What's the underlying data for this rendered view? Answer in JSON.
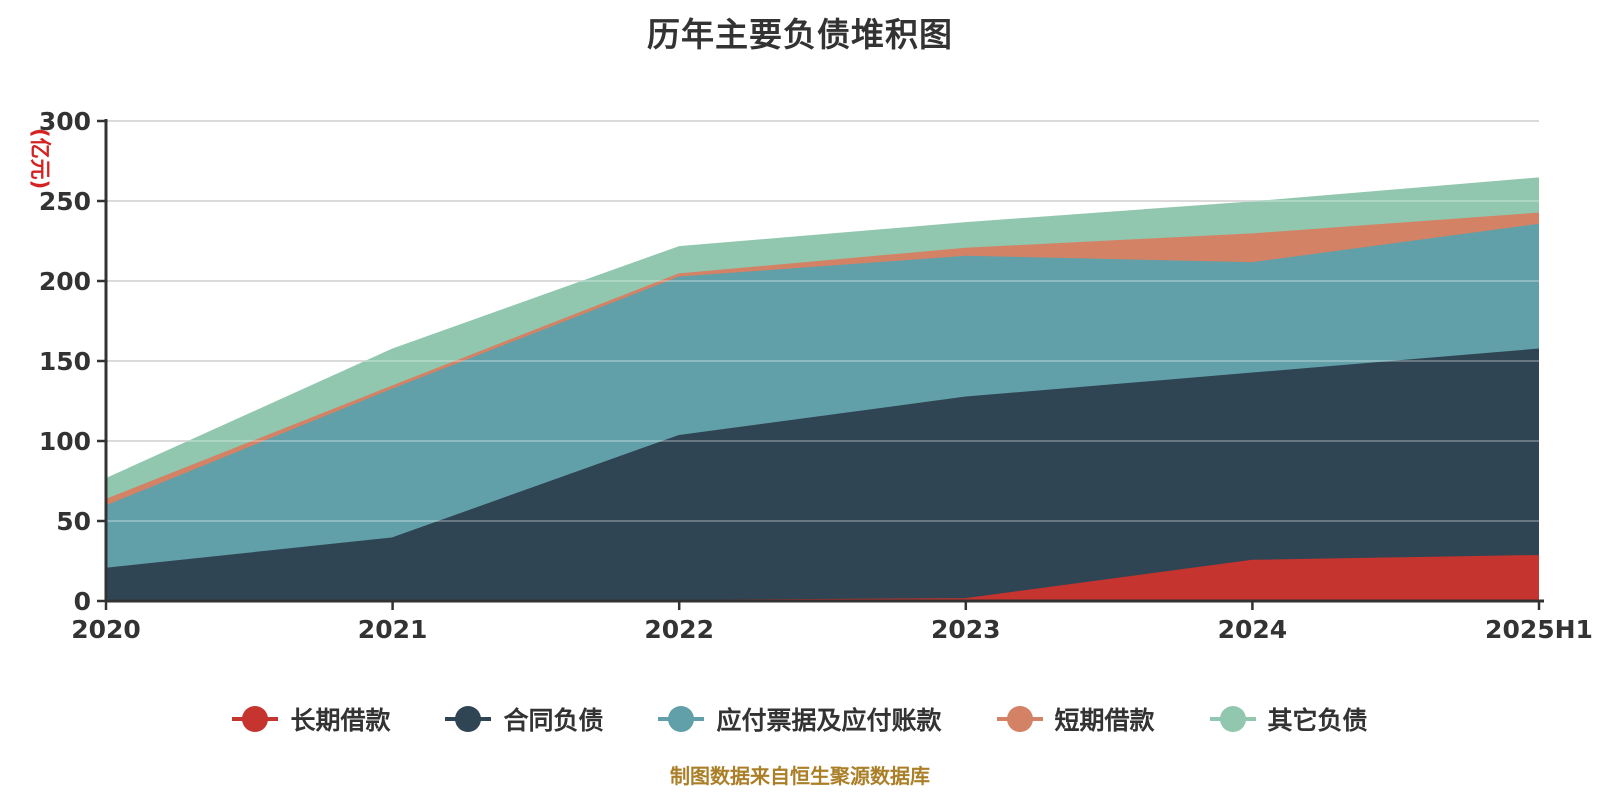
{
  "title": "历年主要负债堆积图",
  "footer": {
    "text": "制图数据来自恒生聚源数据库",
    "color": "#ab7f28"
  },
  "y_axis": {
    "name": "(亿元)",
    "name_color": "#d32222",
    "min": 0,
    "max": 300,
    "interval": 50,
    "tick_labels": [
      "0",
      "50",
      "100",
      "150",
      "200",
      "250",
      "300"
    ],
    "label_color": "#333333"
  },
  "x_axis": {
    "categories": [
      "2020",
      "2021",
      "2022",
      "2023",
      "2024",
      "2025H1"
    ],
    "label_color": "#333333"
  },
  "legend": [
    {
      "label": "长期借款",
      "color": "#c5342f"
    },
    {
      "label": "合同负债",
      "color": "#2f4554"
    },
    {
      "label": "应付票据及应付账款",
      "color": "#61a0a8"
    },
    {
      "label": "短期借款",
      "color": "#d48265"
    },
    {
      "label": "其它负债",
      "color": "#91c7ae"
    }
  ],
  "chart_data": {
    "type": "area",
    "stacked": true,
    "title": "历年主要负债堆积图",
    "ylabel": "(亿元)",
    "ylim": [
      0,
      300
    ],
    "grid": true,
    "legend_position": "bottom",
    "categories": [
      "2020",
      "2021",
      "2022",
      "2023",
      "2024",
      "2025H1"
    ],
    "series": [
      {
        "name": "长期借款",
        "color": "#c5342f",
        "values": [
          0,
          0,
          0,
          1,
          25,
          28
        ]
      },
      {
        "name": "合同负债",
        "color": "#2f4554",
        "values": [
          20,
          39,
          103,
          126,
          117,
          129
        ]
      },
      {
        "name": "应付票据及应付账款",
        "color": "#61a0a8",
        "values": [
          39,
          93,
          99,
          88,
          69,
          78
        ]
      },
      {
        "name": "短期借款",
        "color": "#d48265",
        "values": [
          4,
          2,
          2,
          5,
          18,
          7
        ]
      },
      {
        "name": "其它负债",
        "color": "#91c7ae",
        "values": [
          13,
          23,
          17,
          16,
          20,
          22
        ]
      }
    ],
    "cumulative_tops": {
      "2020": [
        0,
        20,
        59,
        63,
        76
      ],
      "2021": [
        0,
        39,
        132,
        134,
        157
      ],
      "2022": [
        0,
        103,
        202,
        204,
        221
      ],
      "2023": [
        1,
        127,
        215,
        220,
        236
      ],
      "2024": [
        25,
        142,
        211,
        229,
        249
      ],
      "2025H1": [
        28,
        157,
        235,
        242,
        264
      ]
    }
  },
  "style": {
    "axis_color": "#333333",
    "grid_color": "#cccccc",
    "background": "#ffffff",
    "title_color": "#333333"
  }
}
